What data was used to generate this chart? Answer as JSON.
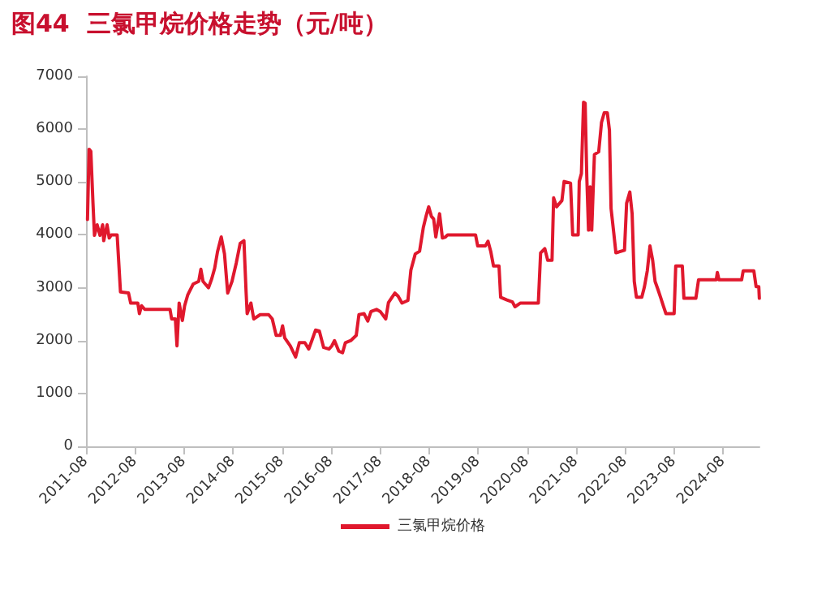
{
  "chart_data": {
    "type": "line",
    "title": "图44  三氯甲烷价格走势（元/吨）",
    "xlim": [
      "2011-08-01",
      "2025-04-28"
    ],
    "xticks": [
      "2011-08",
      "2012-08",
      "2013-08",
      "2014-08",
      "2015-08",
      "2016-08",
      "2017-08",
      "2018-08",
      "2019-08",
      "2020-08",
      "2021-08",
      "2022-08",
      "2023-08",
      "2024-08"
    ],
    "ylim": [
      0,
      7000
    ],
    "yticks": [
      0,
      1000,
      2000,
      3000,
      4000,
      5000,
      6000,
      7000
    ],
    "grid": false,
    "legend": "bottom",
    "marker": "none",
    "line_style": "solid",
    "series": [
      {
        "name": "三氯甲烷价格",
        "color": "#e0182d",
        "x": [
          "2011-08-12",
          "2011-08-24",
          "2011-09-06",
          "2011-09-22",
          "2011-10-03",
          "2011-10-23",
          "2011-11-13",
          "2011-12-03",
          "2011-12-11",
          "2012-01-05",
          "2012-01-21",
          "2012-02-06",
          "2012-03-20",
          "2012-04-14",
          "2012-06-13",
          "2012-06-29",
          "2012-08-21",
          "2012-09-02",
          "2012-09-18",
          "2012-10-12",
          "2013-04-18",
          "2013-04-30",
          "2013-05-28",
          "2013-06-09",
          "2013-06-25",
          "2013-07-19",
          "2013-08-05",
          "2013-08-29",
          "2013-10-08",
          "2013-11-18",
          "2013-12-04",
          "2013-12-20",
          "2014-01-30",
          "2014-02-23",
          "2014-03-17",
          "2014-04-07",
          "2014-05-05",
          "2014-05-29",
          "2014-06-22",
          "2014-07-24",
          "2014-08-25",
          "2014-09-23",
          "2014-10-21",
          "2014-11-06",
          "2014-11-14",
          "2014-12-12",
          "2015-01-02",
          "2015-02-19",
          "2015-04-23",
          "2015-05-20",
          "2015-06-18",
          "2015-07-20",
          "2015-08-05",
          "2015-08-21",
          "2015-10-01",
          "2015-11-10",
          "2015-12-08",
          "2016-01-18",
          "2016-02-16",
          "2016-03-10",
          "2016-04-07",
          "2016-05-05",
          "2016-06-06",
          "2016-07-16",
          "2016-08-06",
          "2016-08-26",
          "2016-09-27",
          "2016-10-25",
          "2016-11-15",
          "2016-12-25",
          "2017-02-04",
          "2017-02-24",
          "2017-04-03",
          "2017-05-01",
          "2017-05-25",
          "2017-07-05",
          "2017-08-02",
          "2017-09-12",
          "2017-10-02",
          "2017-11-19",
          "2017-12-13",
          "2018-01-11",
          "2018-02-24",
          "2018-03-18",
          "2018-04-20",
          "2018-05-22",
          "2018-06-19",
          "2018-07-09",
          "2018-07-29",
          "2018-08-18",
          "2018-09-04",
          "2018-09-20",
          "2018-10-18",
          "2018-11-08",
          "2018-12-01",
          "2018-12-17",
          "2019-07-13",
          "2019-07-29",
          "2019-09-24",
          "2019-10-14",
          "2019-11-04",
          "2019-11-24",
          "2020-01-04",
          "2020-01-16",
          "2020-03-03",
          "2020-04-13",
          "2020-05-02",
          "2020-06-12",
          "2020-10-23",
          "2020-11-09",
          "2020-12-10",
          "2021-01-01",
          "2021-02-02",
          "2021-02-14",
          "2021-03-08",
          "2021-04-17",
          "2021-05-03",
          "2021-06-20",
          "2021-07-06",
          "2021-08-16",
          "2021-08-24",
          "2021-09-09",
          "2021-09-25",
          "2021-10-07",
          "2021-10-19",
          "2021-11-01",
          "2021-11-13",
          "2021-11-25",
          "2021-12-15",
          "2022-01-16",
          "2022-02-06",
          "2022-02-26",
          "2022-03-21",
          "2022-04-06",
          "2022-04-18",
          "2022-05-08",
          "2022-05-24",
          "2022-07-27",
          "2022-08-12",
          "2022-09-05",
          "2022-09-22",
          "2022-10-08",
          "2022-10-24",
          "2022-12-03",
          "2022-12-23",
          "2023-01-13",
          "2023-02-02",
          "2023-02-22",
          "2023-03-12",
          "2023-04-02",
          "2023-04-22",
          "2023-05-12",
          "2023-06-01",
          "2023-08-01",
          "2023-08-13",
          "2023-10-01",
          "2023-10-13",
          "2024-01-10",
          "2024-01-30",
          "2024-06-10",
          "2024-06-18",
          "2024-06-30",
          "2024-12-16",
          "2024-12-28",
          "2025-03-17",
          "2025-04-03",
          "2025-04-23",
          "2025-04-27"
        ],
        "values": [
          4290,
          5620,
          5580,
          4600,
          3990,
          4190,
          3990,
          4190,
          3890,
          4190,
          3940,
          4000,
          4000,
          2920,
          2900,
          2710,
          2710,
          2510,
          2660,
          2590,
          2590,
          2410,
          2410,
          1900,
          2710,
          2380,
          2660,
          2870,
          3070,
          3120,
          3350,
          3120,
          3000,
          3170,
          3370,
          3680,
          3960,
          3640,
          2900,
          3120,
          3470,
          3840,
          3890,
          2920,
          2510,
          2710,
          2410,
          2490,
          2490,
          2410,
          2100,
          2100,
          2280,
          2050,
          1900,
          1690,
          1960,
          1960,
          1840,
          2000,
          2200,
          2180,
          1870,
          1840,
          1900,
          2000,
          1800,
          1770,
          1960,
          2000,
          2100,
          2490,
          2510,
          2370,
          2550,
          2590,
          2550,
          2410,
          2720,
          2900,
          2840,
          2710,
          2760,
          3330,
          3640,
          3690,
          4140,
          4350,
          4530,
          4350,
          4300,
          3960,
          4400,
          3940,
          3960,
          4000,
          4000,
          3790,
          3790,
          3880,
          3680,
          3410,
          3410,
          2820,
          2770,
          2730,
          2640,
          2710,
          2710,
          3660,
          3740,
          3520,
          3520,
          4700,
          4530,
          4650,
          5010,
          4980,
          4000,
          4000,
          5010,
          5160,
          6510,
          6490,
          5110,
          4090,
          4910,
          4090,
          5520,
          5570,
          6130,
          6310,
          6310,
          5980,
          4500,
          4040,
          3660,
          3710,
          4600,
          4810,
          4400,
          3120,
          2820,
          2820,
          3020,
          3320,
          3790,
          3520,
          3120,
          2970,
          2820,
          2660,
          2510,
          2510,
          3410,
          3410,
          2800,
          2800,
          3150,
          3150,
          3290,
          3150,
          3150,
          3320,
          3320,
          3020,
          3020,
          2800
        ]
      }
    ]
  }
}
